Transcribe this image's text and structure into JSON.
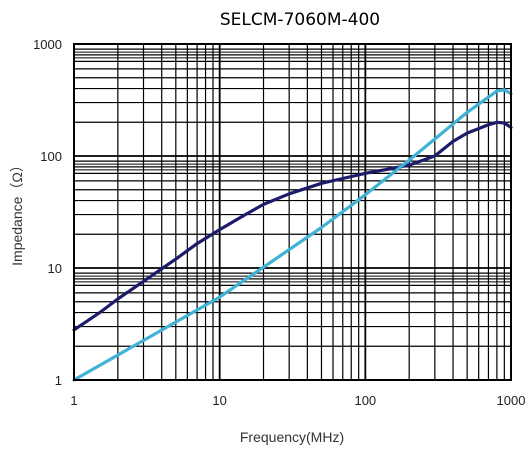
{
  "chart_data": {
    "type": "line",
    "title": "SELCM-7060M-400",
    "xlabel": "Frequency(MHz)",
    "ylabel": "Impedance（Ω）",
    "xscale": "log",
    "yscale": "log",
    "xlim": [
      1,
      1000
    ],
    "ylim": [
      1,
      1000
    ],
    "grid": true,
    "x_ticks": [
      "1",
      "10",
      "100",
      "1000"
    ],
    "y_ticks": [
      "1",
      "10",
      "100",
      "1000"
    ],
    "series": [
      {
        "color": "#1c1c6b",
        "points": [
          [
            1,
            2.8
          ],
          [
            1.5,
            4
          ],
          [
            2,
            5.3
          ],
          [
            3,
            7.6
          ],
          [
            5,
            12
          ],
          [
            7,
            16.5
          ],
          [
            10,
            22
          ],
          [
            15,
            30
          ],
          [
            20,
            37
          ],
          [
            30,
            46
          ],
          [
            50,
            57
          ],
          [
            70,
            63
          ],
          [
            100,
            70
          ],
          [
            150,
            77
          ],
          [
            200,
            83
          ],
          [
            300,
            100
          ],
          [
            400,
            135
          ],
          [
            500,
            160
          ],
          [
            700,
            190
          ],
          [
            800,
            200
          ],
          [
            900,
            197
          ],
          [
            1000,
            180
          ]
        ]
      },
      {
        "color": "#3fb2d6",
        "points": [
          [
            1,
            1.0
          ],
          [
            10,
            5.5
          ],
          [
            50,
            23
          ],
          [
            100,
            45
          ],
          [
            200,
            92
          ],
          [
            500,
            245
          ],
          [
            800,
            380
          ],
          [
            900,
            390
          ],
          [
            1000,
            360
          ]
        ]
      }
    ]
  }
}
